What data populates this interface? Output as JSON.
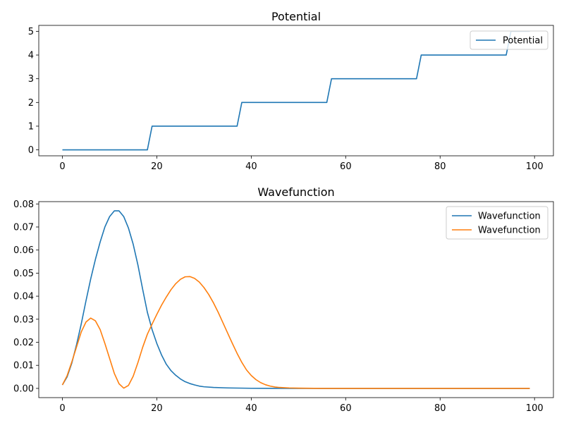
{
  "chart_data": [
    {
      "type": "line",
      "title": "Potential",
      "xlabel": "",
      "ylabel": "",
      "xlim": [
        -5,
        104
      ],
      "ylim": [
        -0.25,
        5.25
      ],
      "xticks": [
        0,
        20,
        40,
        60,
        80,
        100
      ],
      "yticks": [
        0,
        1,
        2,
        3,
        4,
        5
      ],
      "legend": "top-right",
      "grid": false,
      "series": [
        {
          "name": "Potential",
          "color": "#1f77b4",
          "points": [
            [
              0,
              0
            ],
            [
              18,
              0
            ],
            [
              19,
              1
            ],
            [
              37,
              1
            ],
            [
              38,
              2
            ],
            [
              56,
              2
            ],
            [
              57,
              3
            ],
            [
              75,
              3
            ],
            [
              76,
              4
            ],
            [
              94,
              4
            ],
            [
              95,
              5
            ],
            [
              99,
              5
            ]
          ]
        }
      ]
    },
    {
      "type": "line",
      "title": "Wavefunction",
      "xlabel": "",
      "ylabel": "",
      "xlim": [
        -5,
        104
      ],
      "ylim": [
        -0.004,
        0.081
      ],
      "xticks": [
        0,
        20,
        40,
        60,
        80,
        100
      ],
      "yticks": [
        0.0,
        0.01,
        0.02,
        0.03,
        0.04,
        0.05,
        0.06,
        0.07,
        0.08
      ],
      "yticklabels": [
        "0.00",
        "0.01",
        "0.02",
        "0.03",
        "0.04",
        "0.05",
        "0.06",
        "0.07",
        "0.08"
      ],
      "legend": "top-right",
      "grid": false,
      "series": [
        {
          "name": "Wavefunction",
          "color": "#1f77b4",
          "points": [
            [
              0,
              0.0015
            ],
            [
              1,
              0.005
            ],
            [
              2,
              0.011
            ],
            [
              3,
              0.019
            ],
            [
              4,
              0.028
            ],
            [
              5,
              0.038
            ],
            [
              6,
              0.0475
            ],
            [
              7,
              0.056
            ],
            [
              8,
              0.0635
            ],
            [
              9,
              0.07
            ],
            [
              10,
              0.0745
            ],
            [
              11,
              0.077
            ],
            [
              12,
              0.077
            ],
            [
              13,
              0.0745
            ],
            [
              14,
              0.0695
            ],
            [
              15,
              0.0625
            ],
            [
              16,
              0.0535
            ],
            [
              17,
              0.043
            ],
            [
              18,
              0.033
            ],
            [
              19,
              0.0255
            ],
            [
              20,
              0.0195
            ],
            [
              21,
              0.0145
            ],
            [
              22,
              0.0105
            ],
            [
              23,
              0.0077
            ],
            [
              24,
              0.0057
            ],
            [
              25,
              0.0041
            ],
            [
              26,
              0.0029
            ],
            [
              27,
              0.0021
            ],
            [
              28,
              0.0015
            ],
            [
              29,
              0.001
            ],
            [
              30,
              0.0007
            ],
            [
              32,
              0.0004
            ],
            [
              35,
              0.0002
            ],
            [
              40,
              5e-05
            ],
            [
              50,
              0.0
            ],
            [
              99,
              0.0
            ]
          ]
        },
        {
          "name": "Wavefunction",
          "color": "#ff7f0e",
          "points": [
            [
              0,
              0.0015
            ],
            [
              1,
              0.0055
            ],
            [
              2,
              0.0115
            ],
            [
              3,
              0.018
            ],
            [
              4,
              0.0245
            ],
            [
              5,
              0.0288
            ],
            [
              6,
              0.0305
            ],
            [
              7,
              0.0293
            ],
            [
              8,
              0.0255
            ],
            [
              9,
              0.0195
            ],
            [
              10,
              0.013
            ],
            [
              11,
              0.0065
            ],
            [
              12,
              0.002
            ],
            [
              13,
              0.0001
            ],
            [
              14,
              0.0013
            ],
            [
              15,
              0.0053
            ],
            [
              16,
              0.0112
            ],
            [
              17,
              0.0178
            ],
            [
              18,
              0.0235
            ],
            [
              19,
              0.0279
            ],
            [
              20,
              0.0321
            ],
            [
              21,
              0.0361
            ],
            [
              22,
              0.0396
            ],
            [
              23,
              0.0428
            ],
            [
              24,
              0.0454
            ],
            [
              25,
              0.0473
            ],
            [
              26,
              0.0484
            ],
            [
              27,
              0.0485
            ],
            [
              28,
              0.0477
            ],
            [
              29,
              0.0461
            ],
            [
              30,
              0.0437
            ],
            [
              31,
              0.0407
            ],
            [
              32,
              0.0371
            ],
            [
              33,
              0.033
            ],
            [
              34,
              0.0285
            ],
            [
              35,
              0.024
            ],
            [
              36,
              0.0195
            ],
            [
              37,
              0.0152
            ],
            [
              38,
              0.0113
            ],
            [
              39,
              0.008
            ],
            [
              40,
              0.0056
            ],
            [
              41,
              0.0038
            ],
            [
              42,
              0.0025
            ],
            [
              43,
              0.0016
            ],
            [
              44,
              0.001
            ],
            [
              45,
              0.0006
            ],
            [
              46,
              0.0004
            ],
            [
              48,
              0.0002
            ],
            [
              50,
              0.0001
            ],
            [
              55,
              0.0
            ],
            [
              99,
              0.0
            ]
          ]
        }
      ]
    }
  ]
}
